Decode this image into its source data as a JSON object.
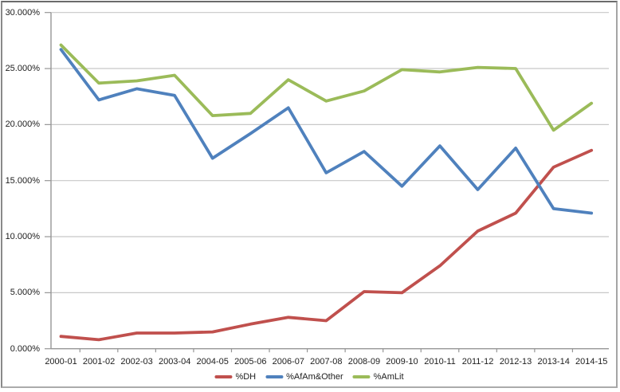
{
  "chart_data": {
    "type": "line",
    "title": "",
    "xlabel": "",
    "ylabel": "",
    "categories": [
      "2000-01",
      "2001-02",
      "2002-03",
      "2003-04",
      "2004-05",
      "2005-06",
      "2006-07",
      "2007-08",
      "2008-09",
      "2009-10",
      "2010-11",
      "2011-12",
      "2012-13",
      "2013-14",
      "2014-15"
    ],
    "series": [
      {
        "name": "%DH",
        "color": "#C0504D",
        "values": [
          1.1,
          0.8,
          1.4,
          1.4,
          1.5,
          2.2,
          2.8,
          2.5,
          5.1,
          5.0,
          7.4,
          10.5,
          12.1,
          16.2,
          17.7
        ]
      },
      {
        "name": "%AfAm&Other",
        "color": "#4F81BD",
        "values": [
          26.7,
          22.2,
          23.2,
          22.6,
          17.0,
          19.2,
          21.5,
          15.7,
          17.6,
          14.5,
          18.1,
          14.2,
          17.9,
          12.5,
          12.1
        ]
      },
      {
        "name": "%AmLit",
        "color": "#9BBB59",
        "values": [
          27.1,
          23.7,
          23.9,
          24.4,
          20.8,
          21.0,
          24.0,
          22.1,
          23.0,
          24.9,
          24.7,
          25.1,
          25.0,
          19.5,
          21.9
        ]
      }
    ],
    "ylim": [
      0,
      30
    ],
    "y_tick_step": 5,
    "y_tick_labels": [
      "0.000%",
      "5.000%",
      "10.000%",
      "15.000%",
      "20.000%",
      "25.000%",
      "30.000%"
    ],
    "grid": true,
    "legend_position": "bottom"
  },
  "colors": {
    "background": "#FFFFFF",
    "gridline": "#C8C8C8",
    "axis": "#969696",
    "label_text": "#202020"
  }
}
